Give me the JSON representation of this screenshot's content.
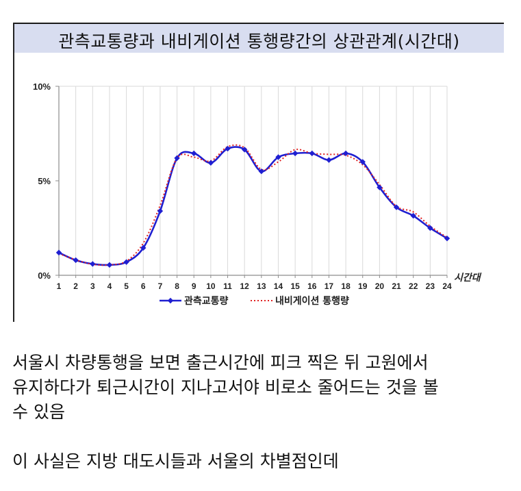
{
  "chart_data": {
    "type": "line",
    "title": "관측교통량과 내비게이션 통행량간의 상관관계(시간대)",
    "xlabel": "시간대",
    "ylabel": "",
    "x": [
      1,
      2,
      3,
      4,
      5,
      6,
      7,
      8,
      9,
      10,
      11,
      12,
      13,
      14,
      15,
      16,
      17,
      18,
      19,
      20,
      21,
      22,
      23,
      24
    ],
    "xlim": [
      1,
      24
    ],
    "ylim": [
      0,
      10
    ],
    "yticks": [
      "0%",
      "5%",
      "10%"
    ],
    "y_unit": "%",
    "grid": "vertical",
    "legend": "bottom",
    "series": [
      {
        "name": "관측교통량",
        "style": "solid line with diamond markers",
        "color": "#1f1fd1",
        "values": [
          1.2,
          0.8,
          0.6,
          0.55,
          0.7,
          1.45,
          3.4,
          6.2,
          6.45,
          5.95,
          6.7,
          6.65,
          5.5,
          6.25,
          6.45,
          6.45,
          6.1,
          6.45,
          6.0,
          4.65,
          3.6,
          3.15,
          2.5,
          1.95
        ]
      },
      {
        "name": "내비게이션 통행량",
        "style": "dotted line",
        "color": "#e02020",
        "values": [
          1.15,
          0.82,
          0.58,
          0.55,
          0.75,
          1.7,
          3.7,
          6.2,
          6.25,
          6.05,
          6.8,
          6.75,
          5.6,
          6.0,
          6.65,
          6.45,
          6.4,
          6.35,
          5.85,
          4.8,
          3.65,
          3.35,
          2.6,
          2.0
        ]
      }
    ]
  },
  "caption": {
    "paragraph1": [
      "서울시 차량통행을 보면 출근시간에 피크 찍은 뒤 고원에서",
      "유지하다가 퇴근시간이 지나고서야 비로소 줄어드는 것을 볼",
      "수 있음"
    ],
    "paragraph2": "이 사실은 지방 대도시들과 서울의 차별점인데"
  }
}
